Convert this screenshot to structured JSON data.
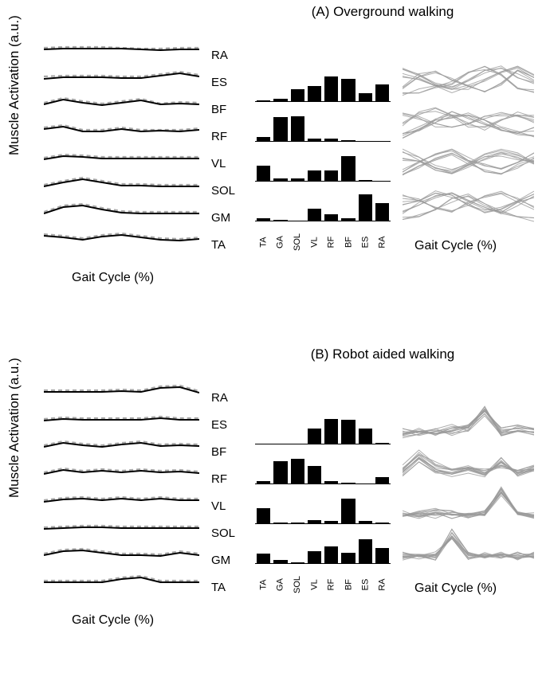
{
  "figures": [
    {
      "letter": "(A)",
      "title": "Overground walking",
      "ylabel": "Muscle Activation (a.u.)",
      "xlabel": "Gait Cycle (%)",
      "wavy_xlabel": "Gait Cycle (%)",
      "muscles": [
        "RA",
        "ES",
        "BF",
        "RF",
        "VL",
        "SOL",
        "GM",
        "TA"
      ],
      "bar_xlabels": [
        "TA",
        "GA",
        "SOL",
        "VL",
        "RF",
        "BF",
        "ES",
        "RA"
      ],
      "line_color": "#000000",
      "dash_color": "#a8a8a8",
      "bar_color": "#000000",
      "wavy_color": "#9a9a9a",
      "lines": [
        {
          "solid": [
            12,
            11,
            11,
            11,
            11,
            12,
            13,
            12,
            12
          ],
          "dash": [
            10,
            9,
            9,
            9,
            10,
            11,
            11,
            10,
            10
          ]
        },
        {
          "solid": [
            15,
            13,
            13,
            13,
            14,
            14,
            11,
            8,
            12
          ],
          "dash": [
            12,
            11,
            11,
            11,
            12,
            12,
            9,
            6,
            10
          ]
        },
        {
          "solid": [
            13,
            7,
            11,
            14,
            11,
            8,
            13,
            12,
            13
          ],
          "dash": [
            11,
            5,
            9,
            12,
            9,
            6,
            12,
            10,
            11
          ]
        },
        {
          "solid": [
            10,
            7,
            13,
            13,
            10,
            13,
            12,
            13,
            11
          ],
          "dash": [
            8,
            5,
            11,
            11,
            8,
            11,
            11,
            11,
            9
          ]
        },
        {
          "solid": [
            14,
            10,
            11,
            13,
            13,
            13,
            13,
            13,
            13
          ],
          "dash": [
            12,
            8,
            9,
            11,
            11,
            11,
            11,
            11,
            11
          ]
        },
        {
          "solid": [
            14,
            9,
            5,
            9,
            13,
            13,
            14,
            14,
            14
          ],
          "dash": [
            12,
            7,
            3,
            7,
            11,
            11,
            12,
            12,
            12
          ]
        },
        {
          "solid": [
            14,
            6,
            4,
            9,
            13,
            14,
            14,
            14,
            14
          ],
          "dash": [
            12,
            4,
            2,
            7,
            11,
            12,
            12,
            12,
            12
          ]
        },
        {
          "solid": [
            8,
            10,
            13,
            9,
            7,
            10,
            13,
            14,
            12
          ],
          "dash": [
            6,
            8,
            11,
            7,
            5,
            8,
            11,
            12,
            10
          ]
        }
      ],
      "bars": [
        [
          0.05,
          0.1,
          0.45,
          0.55,
          0.9,
          0.8,
          0.3,
          0.6
        ],
        [
          0.18,
          0.85,
          0.9,
          0.1,
          0.12,
          0.06,
          0.04,
          0.03
        ],
        [
          0.55,
          0.12,
          0.1,
          0.4,
          0.38,
          0.9,
          0.05,
          0.04
        ],
        [
          0.1,
          0.05,
          0.04,
          0.45,
          0.25,
          0.1,
          0.95,
          0.65
        ]
      ],
      "wavy": [
        [
          [
            0.1,
            0.2,
            0.3,
            0.4,
            0.7,
            0.8,
            0.6,
            0.3,
            0.2
          ],
          [
            0.6,
            0.5,
            0.3,
            0.2,
            0.3,
            0.5,
            0.7,
            0.8,
            0.6
          ],
          [
            0.3,
            0.6,
            0.7,
            0.5,
            0.3,
            0.2,
            0.4,
            0.7,
            0.5
          ],
          [
            0.8,
            0.6,
            0.4,
            0.3,
            0.5,
            0.7,
            0.8,
            0.6,
            0.4
          ]
        ],
        [
          [
            0.2,
            0.3,
            0.5,
            0.7,
            0.6,
            0.4,
            0.3,
            0.2,
            0.3
          ],
          [
            0.7,
            0.6,
            0.4,
            0.3,
            0.4,
            0.6,
            0.7,
            0.6,
            0.5
          ],
          [
            0.4,
            0.7,
            0.8,
            0.6,
            0.4,
            0.3,
            0.5,
            0.7,
            0.6
          ],
          [
            0.1,
            0.3,
            0.5,
            0.6,
            0.7,
            0.5,
            0.3,
            0.2,
            0.1
          ]
        ],
        [
          [
            0.6,
            0.5,
            0.3,
            0.2,
            0.4,
            0.6,
            0.7,
            0.6,
            0.5
          ],
          [
            0.2,
            0.4,
            0.6,
            0.7,
            0.5,
            0.3,
            0.2,
            0.4,
            0.6
          ],
          [
            0.8,
            0.6,
            0.4,
            0.3,
            0.5,
            0.7,
            0.8,
            0.7,
            0.5
          ],
          [
            0.3,
            0.5,
            0.7,
            0.8,
            0.6,
            0.4,
            0.3,
            0.5,
            0.7
          ]
        ],
        [
          [
            0.1,
            0.2,
            0.4,
            0.6,
            0.7,
            0.5,
            0.3,
            0.2,
            0.1
          ],
          [
            0.7,
            0.6,
            0.4,
            0.3,
            0.5,
            0.7,
            0.8,
            0.6,
            0.4
          ],
          [
            0.3,
            0.5,
            0.7,
            0.8,
            0.6,
            0.4,
            0.3,
            0.5,
            0.7
          ],
          [
            0.5,
            0.6,
            0.8,
            0.7,
            0.5,
            0.3,
            0.4,
            0.6,
            0.8
          ]
        ]
      ]
    },
    {
      "letter": "(B)",
      "title": "Robot aided walking",
      "ylabel": "Muscle Activation (a.u.)",
      "xlabel": "Gait Cycle (%)",
      "wavy_xlabel": "Gait Cycle (%)",
      "muscles": [
        "RA",
        "ES",
        "BF",
        "RF",
        "VL",
        "SOL",
        "GM",
        "TA"
      ],
      "bar_xlabels": [
        "TA",
        "GA",
        "SOL",
        "VL",
        "RF",
        "BF",
        "ES",
        "RA"
      ],
      "line_color": "#000000",
      "dash_color": "#a8a8a8",
      "bar_color": "#000000",
      "wavy_color": "#9a9a9a",
      "lines": [
        {
          "solid": [
            12,
            12,
            12,
            12,
            11,
            12,
            7,
            6,
            13
          ],
          "dash": [
            10,
            10,
            10,
            10,
            9,
            10,
            5,
            4,
            11
          ]
        },
        {
          "solid": [
            14,
            12,
            13,
            13,
            13,
            13,
            11,
            13,
            13
          ],
          "dash": [
            12,
            10,
            11,
            11,
            11,
            11,
            9,
            11,
            11
          ]
        },
        {
          "solid": [
            13,
            8,
            11,
            13,
            10,
            8,
            12,
            11,
            12
          ],
          "dash": [
            11,
            6,
            9,
            11,
            8,
            6,
            10,
            9,
            10
          ]
        },
        {
          "solid": [
            13,
            8,
            11,
            9,
            11,
            9,
            11,
            10,
            12
          ],
          "dash": [
            11,
            6,
            9,
            7,
            9,
            7,
            9,
            8,
            10
          ]
        },
        {
          "solid": [
            14,
            11,
            10,
            12,
            10,
            12,
            10,
            12,
            12
          ],
          "dash": [
            12,
            9,
            8,
            10,
            8,
            10,
            8,
            10,
            10
          ]
        },
        {
          "solid": [
            14,
            13,
            12,
            12,
            13,
            13,
            13,
            13,
            13
          ],
          "dash": [
            12,
            11,
            10,
            10,
            11,
            11,
            11,
            11,
            11
          ]
        },
        {
          "solid": [
            13,
            8,
            7,
            10,
            13,
            13,
            14,
            10,
            13
          ],
          "dash": [
            11,
            6,
            5,
            8,
            11,
            11,
            12,
            8,
            11
          ]
        },
        {
          "solid": [
            13,
            13,
            13,
            13,
            9,
            7,
            13,
            13,
            13
          ],
          "dash": [
            11,
            11,
            11,
            11,
            7,
            5,
            11,
            11,
            11
          ]
        }
      ],
      "bars": [
        [
          0.02,
          0.03,
          0.04,
          0.55,
          0.9,
          0.85,
          0.55,
          0.06
        ],
        [
          0.1,
          0.8,
          0.9,
          0.65,
          0.1,
          0.05,
          0.04,
          0.25
        ],
        [
          0.55,
          0.05,
          0.06,
          0.15,
          0.1,
          0.9,
          0.1,
          0.05
        ],
        [
          0.35,
          0.15,
          0.06,
          0.45,
          0.6,
          0.4,
          0.85,
          0.55
        ]
      ],
      "wavy": [
        [
          [
            0.2,
            0.3,
            0.2,
            0.3,
            0.4,
            0.8,
            0.3,
            0.4,
            0.3
          ],
          [
            0.1,
            0.2,
            0.3,
            0.2,
            0.3,
            0.7,
            0.2,
            0.3,
            0.2
          ],
          [
            0.3,
            0.2,
            0.3,
            0.4,
            0.3,
            0.9,
            0.2,
            0.3,
            0.2
          ],
          [
            0.2,
            0.3,
            0.2,
            0.3,
            0.4,
            0.85,
            0.25,
            0.35,
            0.25
          ]
        ],
        [
          [
            0.3,
            0.7,
            0.4,
            0.3,
            0.4,
            0.3,
            0.5,
            0.3,
            0.4
          ],
          [
            0.2,
            0.6,
            0.3,
            0.2,
            0.3,
            0.2,
            0.6,
            0.2,
            0.3
          ],
          [
            0.4,
            0.8,
            0.5,
            0.3,
            0.4,
            0.3,
            0.4,
            0.3,
            0.4
          ],
          [
            0.25,
            0.65,
            0.35,
            0.25,
            0.35,
            0.25,
            0.55,
            0.25,
            0.35
          ]
        ],
        [
          [
            0.2,
            0.3,
            0.2,
            0.3,
            0.2,
            0.3,
            0.9,
            0.3,
            0.2
          ],
          [
            0.3,
            0.2,
            0.3,
            0.2,
            0.3,
            0.2,
            0.8,
            0.3,
            0.2
          ],
          [
            0.2,
            0.3,
            0.4,
            0.3,
            0.2,
            0.3,
            0.95,
            0.25,
            0.2
          ],
          [
            0.25,
            0.25,
            0.3,
            0.25,
            0.25,
            0.3,
            0.85,
            0.3,
            0.25
          ]
        ],
        [
          [
            0.2,
            0.3,
            0.2,
            0.8,
            0.3,
            0.2,
            0.3,
            0.2,
            0.3
          ],
          [
            0.3,
            0.2,
            0.3,
            0.7,
            0.2,
            0.3,
            0.2,
            0.3,
            0.2
          ],
          [
            0.2,
            0.3,
            0.2,
            0.9,
            0.3,
            0.2,
            0.3,
            0.2,
            0.3
          ],
          [
            0.25,
            0.25,
            0.25,
            0.75,
            0.25,
            0.25,
            0.25,
            0.25,
            0.25
          ]
        ]
      ]
    }
  ]
}
